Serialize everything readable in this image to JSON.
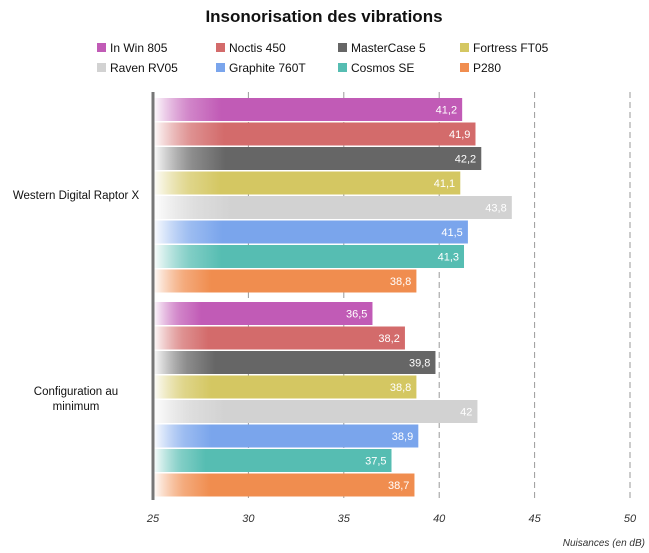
{
  "chart_data": {
    "type": "bar",
    "orientation": "horizontal",
    "title": "Insonorisation des vibrations",
    "xlabel": "Nuisances (en dB)",
    "xlim": [
      25,
      50
    ],
    "xticks": [
      "25",
      "30",
      "35",
      "40",
      "45",
      "50"
    ],
    "grid": "vertical dashed",
    "legend_position": "top",
    "categories": [
      "Western Digital Raptor X",
      "Configuration au minimum"
    ],
    "series": [
      {
        "name": "In Win 805",
        "color": "#c15bb6",
        "values": [
          41.2,
          36.5
        ],
        "labels": [
          "41,2",
          "36,5"
        ]
      },
      {
        "name": "Noctis 450",
        "color": "#d36b6b",
        "values": [
          41.9,
          38.2
        ],
        "labels": [
          "41,9",
          "38,2"
        ]
      },
      {
        "name": "MasterCase 5",
        "color": "#666666",
        "values": [
          42.2,
          39.8
        ],
        "labels": [
          "42,2",
          "39,8"
        ]
      },
      {
        "name": "Fortress FT05",
        "color": "#d4c762",
        "values": [
          41.1,
          38.8
        ],
        "labels": [
          "41,1",
          "38,8"
        ]
      },
      {
        "name": "Raven RV05",
        "color": "#d2d2d2",
        "values": [
          43.8,
          42
        ],
        "labels": [
          "43,8",
          "42"
        ]
      },
      {
        "name": "Graphite 760T",
        "color": "#7aa5ec",
        "values": [
          41.5,
          38.9
        ],
        "labels": [
          "41,5",
          "38,9"
        ]
      },
      {
        "name": "Cosmos SE",
        "color": "#56bdb2",
        "values": [
          41.3,
          37.5
        ],
        "labels": [
          "41,3",
          "37,5"
        ]
      },
      {
        "name": "P280",
        "color": "#f08d4f",
        "values": [
          38.8,
          38.7
        ],
        "labels": [
          "38,8",
          "38,7"
        ]
      }
    ]
  }
}
